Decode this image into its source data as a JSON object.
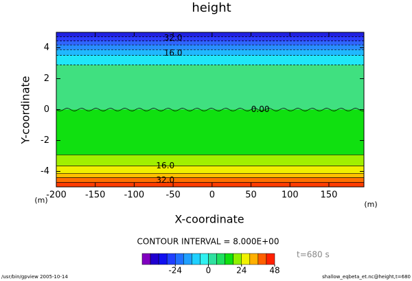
{
  "chart_data": {
    "type": "contour",
    "title": "height",
    "x_label": "X-coordinate",
    "y_label": "Y-coordinate",
    "x_unit": "(m)",
    "y_unit": "(m)",
    "xlim": [
      -200,
      195
    ],
    "ylim": [
      -5,
      5
    ],
    "xticks": [
      -200,
      -150,
      -100,
      -50,
      0,
      50,
      100,
      150
    ],
    "yticks": [
      -4,
      -2,
      0,
      2,
      4
    ],
    "bands": [
      {
        "y0": 4.71,
        "y1": 5,
        "color": "#2020e0"
      },
      {
        "y0": 4.44,
        "y1": 4.71,
        "color": "#2a3cff"
      },
      {
        "y0": 4.18,
        "y1": 4.44,
        "color": "#2e64ff"
      },
      {
        "y0": 3.87,
        "y1": 4.18,
        "color": "#288cff"
      },
      {
        "y0": 3.51,
        "y1": 3.87,
        "color": "#20b8ff"
      },
      {
        "y0": 2.89,
        "y1": 3.51,
        "color": "#20e6f8"
      },
      {
        "y0": 0,
        "y1": 2.89,
        "color": "#40e080"
      },
      {
        "y0": -2.93,
        "y1": 0,
        "color": "#10e010"
      },
      {
        "y0": -3.64,
        "y1": -2.93,
        "color": "#a0f000"
      },
      {
        "y0": -4.13,
        "y1": -3.64,
        "color": "#f0f000"
      },
      {
        "y0": -4.4,
        "y1": -4.13,
        "color": "#ffc000"
      },
      {
        "y0": -4.71,
        "y1": -4.4,
        "color": "#ff7000"
      },
      {
        "y0": -5,
        "y1": -4.71,
        "color": "#ff3c00"
      }
    ],
    "contour_lines": [
      {
        "y": 4.71,
        "dashed": true
      },
      {
        "y": 4.44,
        "dashed": true
      },
      {
        "y": 4.18,
        "dashed": true
      },
      {
        "y": 3.87,
        "dashed": true
      },
      {
        "y": 3.51,
        "dashed": true
      },
      {
        "y": 2.89,
        "dashed": true
      },
      {
        "y": 0,
        "dashed": false
      },
      {
        "y": -2.93,
        "dashed": false
      },
      {
        "y": -3.64,
        "dashed": false
      },
      {
        "y": -4.13,
        "dashed": false
      },
      {
        "y": -4.4,
        "dashed": false
      },
      {
        "y": -4.71,
        "dashed": false
      }
    ],
    "contour_labels": [
      {
        "text": "32.0",
        "x": -50,
        "y": 4.62
      },
      {
        "text": "16.0",
        "x": -50,
        "y": 3.64
      },
      {
        "text": "0.00",
        "x": 62,
        "y": 0
      },
      {
        "text": "16.0",
        "x": -60,
        "y": -3.64
      },
      {
        "text": "32.0",
        "x": -60,
        "y": -4.58
      }
    ],
    "contour_interval": "CONTOUR INTERVAL = 8.000E+00",
    "time_label": "t=680 s",
    "colorbar": {
      "lim": [
        -48,
        48
      ],
      "colors": [
        "#8000c0",
        "#2000d0",
        "#1010f0",
        "#2040ff",
        "#2070ff",
        "#20a0ff",
        "#20d0ff",
        "#30f0f0",
        "#30e0a0",
        "#20e060",
        "#10e010",
        "#90f000",
        "#f0f000",
        "#ffb000",
        "#ff6000",
        "#ff2000"
      ],
      "ticks": [
        -24,
        0,
        24,
        48
      ]
    },
    "footer_left": "/usr/bin/gpview  2005-10-14",
    "footer_right": "shallow_eqbeta_et.nc@height,t=680"
  }
}
